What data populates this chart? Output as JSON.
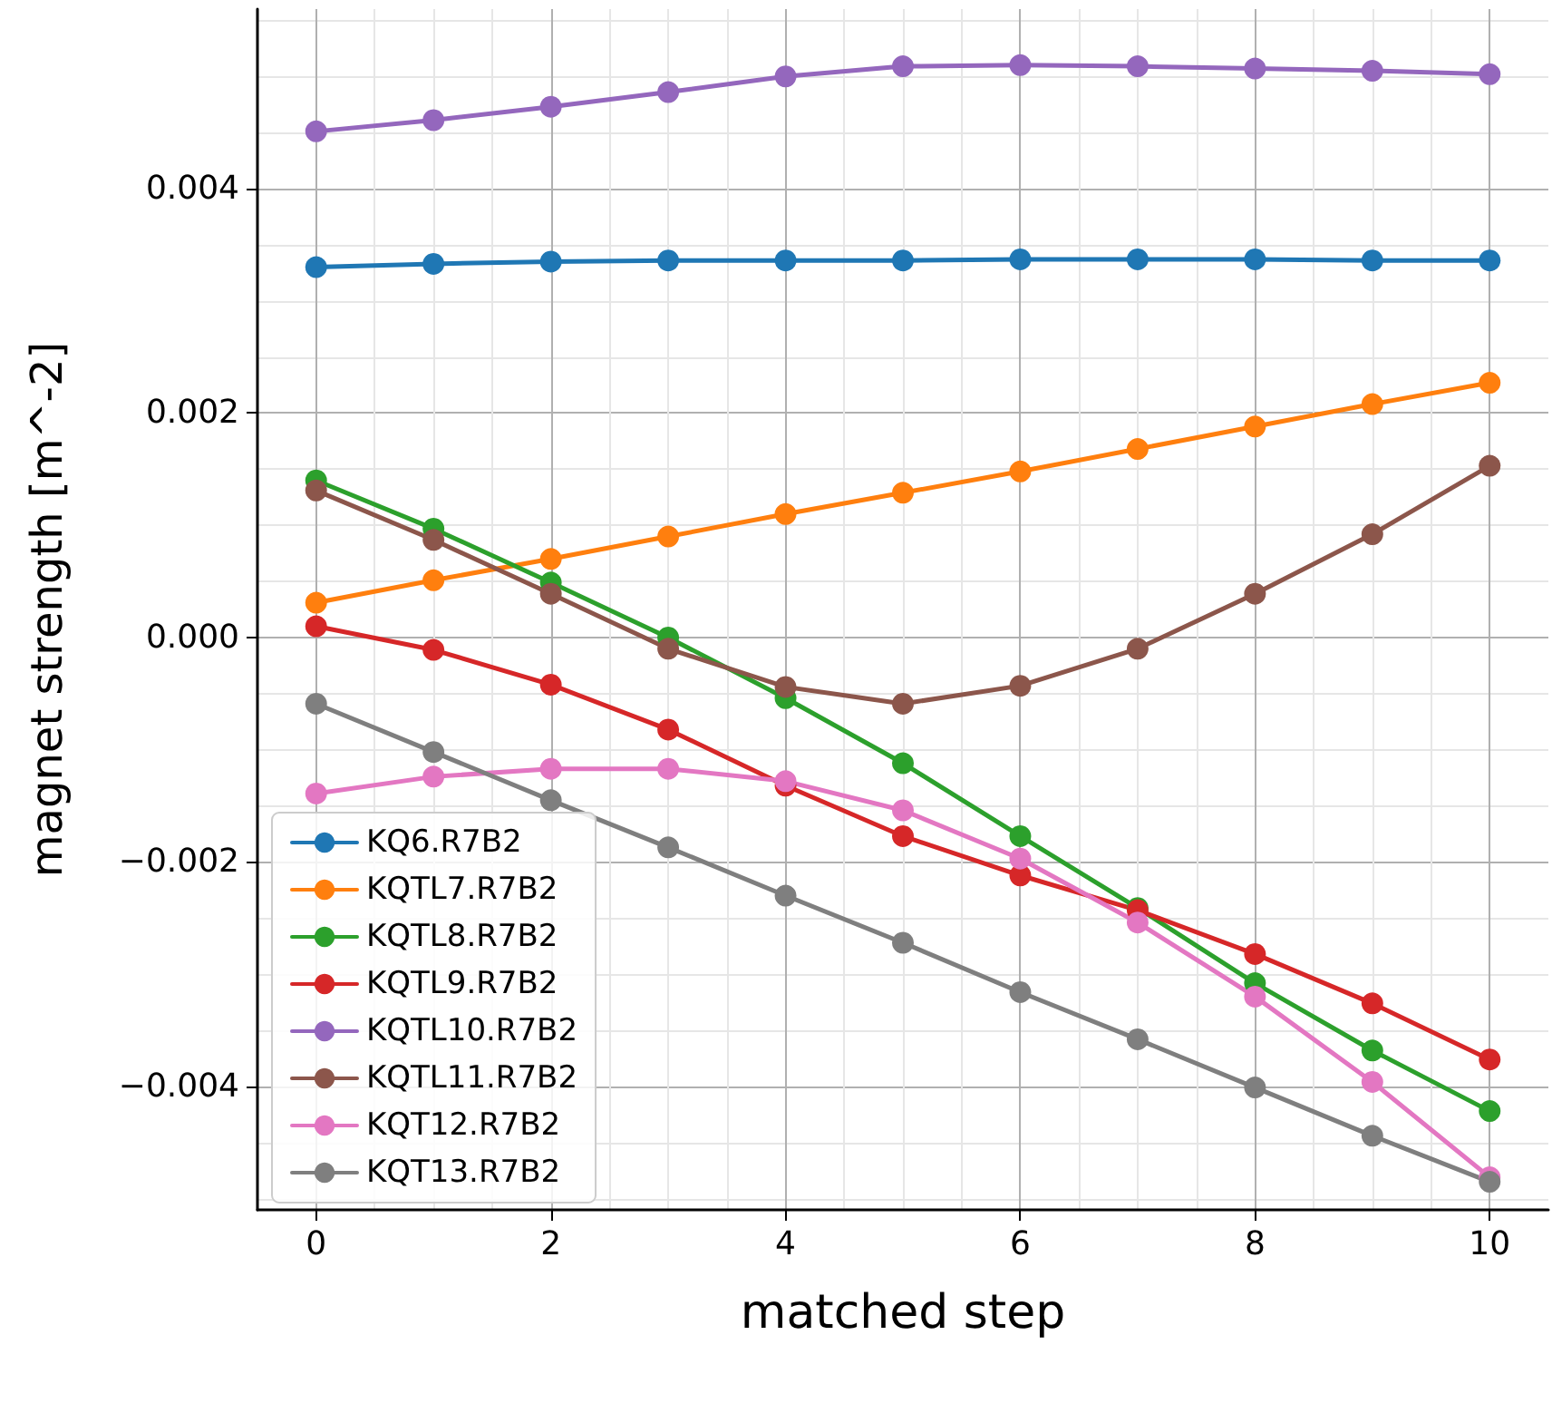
{
  "chart_data": {
    "type": "line",
    "xlabel": "matched step",
    "ylabel": "magnet strength [m^-2]",
    "x": [
      0,
      1,
      2,
      3,
      4,
      5,
      6,
      7,
      8,
      9,
      10
    ],
    "xlim": [
      -0.5,
      10.5
    ],
    "xticks": [
      0,
      2,
      4,
      6,
      8,
      10
    ],
    "ylim": [
      -0.0051,
      0.0056
    ],
    "yticks": [
      {
        "value": -0.004,
        "label": "−0.004"
      },
      {
        "value": -0.002,
        "label": "−0.002"
      },
      {
        "value": 0,
        "label": "0.000"
      },
      0.002,
      0.004
    ],
    "grid": true,
    "legend": "bottom left",
    "marker": "circle",
    "line_style": "solid",
    "series": [
      {
        "name": "KQ6.R7B2",
        "color": "#1f77b4",
        "values": [
          0.0033,
          0.00333,
          0.00335,
          0.00336,
          0.00336,
          0.00336,
          0.00337,
          0.00337,
          0.00337,
          0.00336,
          0.00336
        ]
      },
      {
        "name": "KQTL7.R7B2",
        "color": "#ff7f0e",
        "values": [
          0.00031,
          0.00051,
          0.0007,
          0.0009,
          0.0011,
          0.00129,
          0.00148,
          0.00168,
          0.00188,
          0.00208,
          0.00227
        ]
      },
      {
        "name": "KQTL8.R7B2",
        "color": "#2ca02c",
        "values": [
          0.0014,
          0.00097,
          0.00049,
          0.0,
          -0.00054,
          -0.00112,
          -0.00177,
          -0.00241,
          -0.00308,
          -0.00368,
          -0.00422
        ]
      },
      {
        "name": "KQTL9.R7B2",
        "color": "#d62728",
        "values": [
          0.0001,
          -0.00011,
          -0.00042,
          -0.00082,
          -0.00132,
          -0.00177,
          -0.00212,
          -0.00243,
          -0.00282,
          -0.00326,
          -0.00376
        ]
      },
      {
        "name": "KQTL10.R7B2",
        "color": "#9467bd",
        "values": [
          0.00451,
          0.00461,
          0.00473,
          0.00486,
          0.005,
          0.00509,
          0.0051,
          0.00509,
          0.00507,
          0.00505,
          0.00502
        ]
      },
      {
        "name": "KQTL11.R7B2",
        "color": "#8c564b",
        "values": [
          0.00131,
          0.00087,
          0.00039,
          -0.0001,
          -0.00044,
          -0.00059,
          -0.00043,
          -0.0001,
          0.00039,
          0.00092,
          0.00153
        ]
      },
      {
        "name": "KQT12.R7B2",
        "color": "#e377c2",
        "values": [
          -0.00139,
          -0.00124,
          -0.00117,
          -0.00117,
          -0.00128,
          -0.00154,
          -0.00197,
          -0.00254,
          -0.0032,
          -0.00396,
          -0.00481
        ]
      },
      {
        "name": "KQT13.R7B2",
        "color": "#7f7f7f",
        "values": [
          -0.00059,
          -0.00102,
          -0.00145,
          -0.00187,
          -0.0023,
          -0.00272,
          -0.00316,
          -0.00358,
          -0.00401,
          -0.00444,
          -0.00485
        ]
      }
    ]
  }
}
